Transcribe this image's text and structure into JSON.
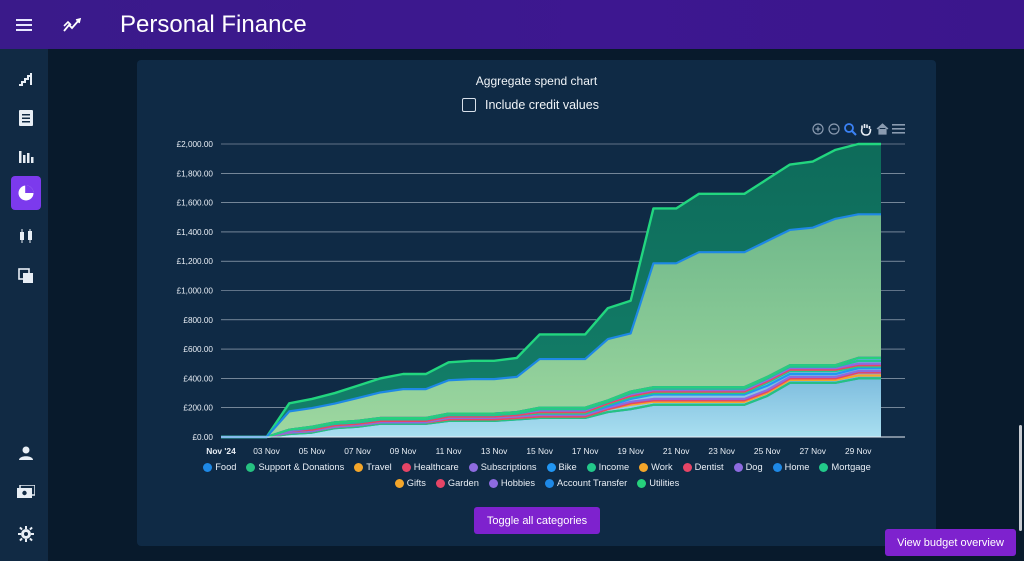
{
  "app": {
    "title": "Personal Finance"
  },
  "sidebar": {
    "items": [
      {
        "icon": "stairs-icon",
        "active": false
      },
      {
        "icon": "ledger-icon",
        "active": false
      },
      {
        "icon": "bar-chart-icon",
        "active": false
      },
      {
        "icon": "pie-chart-icon",
        "active": true
      },
      {
        "icon": "candlestick-icon",
        "active": false
      },
      {
        "icon": "copy-icon",
        "active": false
      },
      {
        "icon": "user-icon",
        "active": false
      },
      {
        "icon": "cash-icon",
        "active": false
      },
      {
        "icon": "gear-icon",
        "active": false
      }
    ]
  },
  "card": {
    "title": "Aggregate spend chart",
    "credit_label": "Include credit values",
    "toggle_label": "Toggle all categories"
  },
  "view_budget_label": "View budget overview",
  "chart_data": {
    "type": "area",
    "stacked": true,
    "title": "",
    "x": [
      "01 Nov",
      "02 Nov",
      "03 Nov",
      "04 Nov",
      "05 Nov",
      "06 Nov",
      "07 Nov",
      "08 Nov",
      "09 Nov",
      "10 Nov",
      "11 Nov",
      "12 Nov",
      "13 Nov",
      "14 Nov",
      "15 Nov",
      "16 Nov",
      "17 Nov",
      "18 Nov",
      "19 Nov",
      "20 Nov",
      "21 Nov",
      "22 Nov",
      "23 Nov",
      "24 Nov",
      "25 Nov",
      "26 Nov",
      "27 Nov",
      "28 Nov",
      "29 Nov",
      "30 Nov"
    ],
    "x_tick_labels": [
      "Nov '24",
      "03 Nov",
      "05 Nov",
      "07 Nov",
      "09 Nov",
      "11 Nov",
      "13 Nov",
      "15 Nov",
      "17 Nov",
      "19 Nov",
      "21 Nov",
      "23 Nov",
      "25 Nov",
      "27 Nov",
      "29 Nov"
    ],
    "y_tick_labels": [
      "£0.00",
      "£200.00",
      "£400.00",
      "£600.00",
      "£800.00",
      "£1,000.00",
      "£1,200.00",
      "£1,400.00",
      "£1,600.00",
      "£1,800.00",
      "£2,000.00"
    ],
    "ylim": [
      0,
      2000
    ],
    "grid": true,
    "legend_position": "bottom",
    "series": [
      {
        "name": "Food",
        "color": "#1e88e5",
        "values": [
          0,
          0,
          0,
          20,
          30,
          60,
          70,
          90,
          90,
          90,
          110,
          110,
          110,
          120,
          130,
          130,
          130,
          170,
          190,
          220,
          220,
          220,
          220,
          220,
          280,
          370,
          370,
          370,
          400,
          400
        ]
      },
      {
        "name": "Support & Donations",
        "color": "#26c281",
        "values": [
          0,
          0,
          0,
          20,
          30,
          60,
          70,
          90,
          90,
          90,
          110,
          110,
          110,
          120,
          130,
          130,
          130,
          170,
          190,
          220,
          220,
          220,
          220,
          220,
          280,
          370,
          370,
          370,
          400,
          400
        ]
      },
      {
        "name": "Travel",
        "color": "#f4a62a",
        "values": [
          0,
          0,
          0,
          30,
          40,
          70,
          80,
          100,
          100,
          100,
          120,
          120,
          120,
          130,
          140,
          140,
          140,
          190,
          220,
          240,
          240,
          240,
          240,
          240,
          300,
          390,
          390,
          390,
          420,
          420
        ]
      },
      {
        "name": "Healthcare",
        "color": "#e64566",
        "values": [
          0,
          0,
          0,
          30,
          40,
          70,
          80,
          100,
          100,
          100,
          120,
          120,
          120,
          130,
          140,
          140,
          140,
          190,
          230,
          250,
          250,
          250,
          250,
          250,
          310,
          400,
          400,
          400,
          440,
          440
        ]
      },
      {
        "name": "Subscriptions",
        "color": "#8d6be0",
        "values": [
          0,
          0,
          0,
          30,
          40,
          70,
          80,
          100,
          100,
          100,
          130,
          130,
          130,
          140,
          150,
          150,
          150,
          200,
          240,
          260,
          260,
          260,
          260,
          260,
          320,
          410,
          410,
          410,
          450,
          450
        ]
      },
      {
        "name": "Bike",
        "color": "#2196f3",
        "values": [
          0,
          0,
          0,
          40,
          50,
          80,
          90,
          110,
          110,
          110,
          140,
          140,
          140,
          150,
          160,
          160,
          160,
          210,
          260,
          290,
          290,
          290,
          290,
          290,
          350,
          430,
          430,
          430,
          470,
          470
        ]
      },
      {
        "name": "Income",
        "color": "#22c98a",
        "values": [
          0,
          0,
          0,
          40,
          50,
          80,
          90,
          110,
          110,
          110,
          140,
          140,
          140,
          150,
          160,
          160,
          160,
          220,
          270,
          300,
          300,
          300,
          300,
          300,
          370,
          450,
          450,
          450,
          480,
          480
        ]
      },
      {
        "name": "Work",
        "color": "#f4a62a",
        "values": [
          0,
          0,
          0,
          40,
          50,
          80,
          90,
          110,
          110,
          110,
          140,
          140,
          140,
          150,
          170,
          170,
          170,
          230,
          280,
          310,
          310,
          310,
          310,
          310,
          380,
          460,
          460,
          460,
          490,
          490
        ]
      },
      {
        "name": "Dentist",
        "color": "#e64566",
        "values": [
          0,
          0,
          0,
          40,
          50,
          80,
          90,
          110,
          110,
          110,
          140,
          140,
          140,
          150,
          170,
          170,
          170,
          230,
          280,
          310,
          310,
          310,
          310,
          310,
          380,
          460,
          460,
          460,
          490,
          490
        ]
      },
      {
        "name": "Dog",
        "color": "#8d6be0",
        "values": [
          0,
          0,
          0,
          40,
          60,
          90,
          100,
          120,
          120,
          120,
          150,
          150,
          150,
          160,
          180,
          180,
          180,
          240,
          290,
          320,
          320,
          320,
          320,
          320,
          390,
          470,
          470,
          470,
          500,
          500
        ]
      },
      {
        "name": "Home",
        "color": "#1e88e5",
        "values": [
          0,
          0,
          0,
          50,
          60,
          90,
          100,
          120,
          120,
          120,
          150,
          150,
          150,
          160,
          190,
          190,
          190,
          240,
          300,
          330,
          330,
          330,
          330,
          330,
          400,
          480,
          480,
          480,
          520,
          520
        ]
      },
      {
        "name": "Mortgage",
        "color": "#22c98a",
        "values": [
          0,
          0,
          0,
          50,
          60,
          90,
          100,
          120,
          120,
          120,
          150,
          150,
          150,
          160,
          190,
          190,
          190,
          240,
          300,
          330,
          330,
          330,
          330,
          330,
          400,
          480,
          480,
          480,
          520,
          520
        ]
      },
      {
        "name": "Gifts",
        "color": "#f4a62a",
        "values": [
          0,
          0,
          0,
          50,
          70,
          100,
          110,
          130,
          130,
          130,
          160,
          160,
          160,
          170,
          200,
          200,
          200,
          250,
          310,
          340,
          340,
          340,
          340,
          340,
          410,
          490,
          490,
          490,
          540,
          540
        ]
      },
      {
        "name": "Garden",
        "color": "#e64566",
        "values": [
          0,
          0,
          0,
          50,
          70,
          100,
          110,
          130,
          130,
          130,
          160,
          160,
          160,
          170,
          200,
          200,
          200,
          250,
          310,
          340,
          340,
          340,
          340,
          340,
          410,
          490,
          490,
          490,
          540,
          540
        ]
      },
      {
        "name": "Hobbies",
        "color": "#8d6be0",
        "values": [
          0,
          0,
          0,
          50,
          70,
          100,
          110,
          130,
          130,
          130,
          160,
          160,
          160,
          170,
          200,
          200,
          200,
          250,
          310,
          340,
          340,
          340,
          340,
          340,
          410,
          490,
          490,
          490,
          540,
          540
        ]
      },
      {
        "name": "Account Transfer",
        "color": "#1e88e5",
        "values": [
          0,
          0,
          0,
          50,
          70,
          100,
          110,
          130,
          130,
          130,
          160,
          160,
          160,
          170,
          200,
          200,
          200,
          250,
          310,
          340,
          340,
          340,
          340,
          340,
          410,
          490,
          490,
          490,
          540,
          540
        ]
      },
      {
        "name": "Utilities",
        "color": "#26d07c",
        "values": [
          0,
          0,
          0,
          50,
          70,
          100,
          110,
          130,
          130,
          130,
          160,
          160,
          160,
          170,
          200,
          200,
          200,
          250,
          310,
          340,
          340,
          340,
          340,
          340,
          410,
          490,
          490,
          490,
          540,
          540
        ]
      }
    ],
    "cumulative_totals": [
      0,
      0,
      0,
      230,
      260,
      300,
      350,
      400,
      430,
      430,
      510,
      520,
      520,
      540,
      700,
      700,
      700,
      880,
      930,
      1560,
      1560,
      1660,
      1660,
      1660,
      1760,
      1860,
      1880,
      1960,
      2000,
      2000
    ]
  }
}
